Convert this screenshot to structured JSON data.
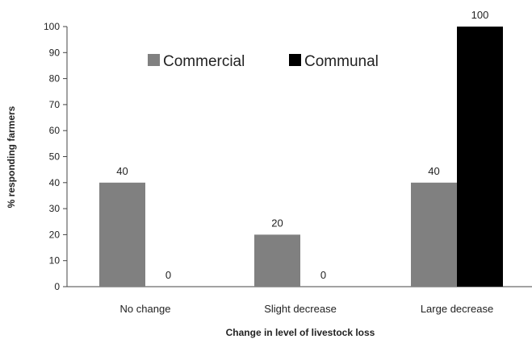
{
  "chart_data": {
    "type": "bar",
    "title": "",
    "xlabel": "Change in level of livestock loss",
    "ylabel": "% responding farmers",
    "ylim": [
      0,
      100
    ],
    "yticks": [
      "0",
      "10",
      "20",
      "30",
      "40",
      "50",
      "60",
      "70",
      "80",
      "90",
      "100"
    ],
    "categories": [
      "No change",
      "Slight decrease",
      "Large decrease"
    ],
    "series": [
      {
        "name": "Commercial",
        "values": [
          40,
          20,
          40
        ],
        "color": "#808080"
      },
      {
        "name": "Communal",
        "values": [
          0,
          0,
          100
        ],
        "color": "#000000"
      }
    ],
    "data_labels": [
      [
        "40",
        "20",
        "40"
      ],
      [
        "0",
        "0",
        "100"
      ]
    ],
    "legend": "top-center",
    "grid": false
  }
}
